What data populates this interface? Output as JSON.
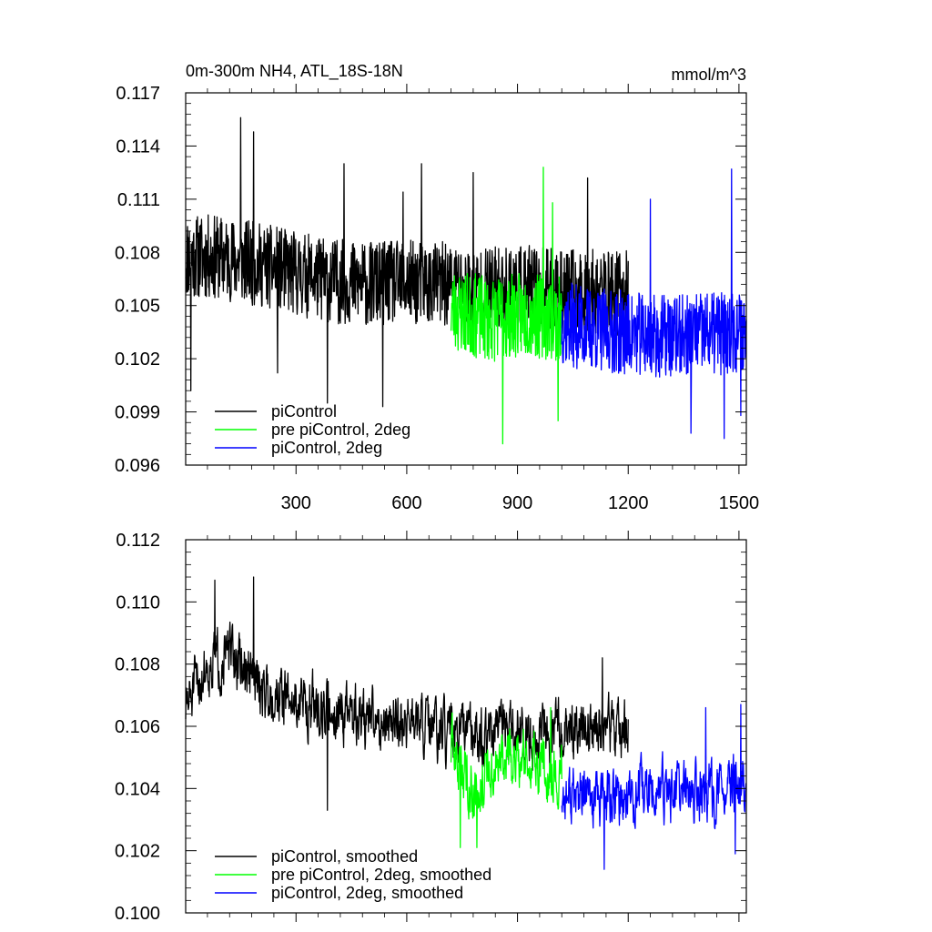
{
  "chart_data": [
    {
      "type": "line",
      "title": "0m-300m NH4, ATL_18S-18N",
      "units": "mmol/m^3",
      "xlabel": "",
      "ylabel": "",
      "xlim": [
        1,
        1520
      ],
      "ylim": [
        0.096,
        0.117
      ],
      "xticks": [
        300,
        600,
        900,
        1200,
        1500
      ],
      "xtick_labels": [
        "300",
        "600",
        "900",
        "1200",
        "1500"
      ],
      "yticks": [
        0.096,
        0.099,
        0.102,
        0.105,
        0.108,
        0.111,
        0.114,
        0.117
      ],
      "ytick_labels": [
        "0.096",
        "0.099",
        "0.102",
        "0.105",
        "0.108",
        "0.111",
        "0.114",
        "0.117"
      ],
      "legend_position": "bottom-left",
      "series": [
        {
          "name": "piControl",
          "color": "#000000",
          "x_start": 1,
          "x_end": 1200,
          "anchors": [
            [
              1,
              0.1078
            ],
            [
              100,
              0.1077
            ],
            [
              200,
              0.1073
            ],
            [
              300,
              0.1068
            ],
            [
              400,
              0.1064
            ],
            [
              500,
              0.1062
            ],
            [
              600,
              0.1063
            ],
            [
              700,
              0.1062
            ],
            [
              800,
              0.1059
            ],
            [
              900,
              0.1061
            ],
            [
              1000,
              0.1058
            ],
            [
              1100,
              0.1058
            ],
            [
              1200,
              0.1057
            ]
          ],
          "noise": 0.0024,
          "seed": 11,
          "peaks": [
            [
              15,
              0.1002
            ],
            [
              150,
              0.1156
            ],
            [
              185,
              0.1148
            ],
            [
              250,
              0.1012
            ],
            [
              340,
              0.1058
            ],
            [
              385,
              0.0995
            ],
            [
              430,
              0.113
            ],
            [
              535,
              0.0993
            ],
            [
              590,
              0.1114
            ],
            [
              640,
              0.113
            ],
            [
              780,
              0.1125
            ],
            [
              1090,
              0.1122
            ]
          ]
        },
        {
          "name": "pre piControl, 2deg",
          "color": "#00ff00",
          "x_start": 720,
          "x_end": 1020,
          "anchors": [
            [
              720,
              0.1048
            ],
            [
              820,
              0.1042
            ],
            [
              920,
              0.1045
            ],
            [
              1020,
              0.1042
            ]
          ],
          "noise": 0.0024,
          "seed": 23,
          "peaks": [
            [
              860,
              0.0972
            ],
            [
              970,
              0.1128
            ],
            [
              995,
              0.1108
            ],
            [
              1010,
              0.0985
            ]
          ]
        },
        {
          "name": "piControl, 2deg",
          "color": "#0000ff",
          "x_start": 1020,
          "x_end": 1520,
          "anchors": [
            [
              1020,
              0.104
            ],
            [
              1120,
              0.1036
            ],
            [
              1220,
              0.1034
            ],
            [
              1320,
              0.1032
            ],
            [
              1420,
              0.1034
            ],
            [
              1520,
              0.1036
            ]
          ],
          "noise": 0.0024,
          "seed": 37,
          "peaks": [
            [
              1260,
              0.111
            ],
            [
              1370,
              0.0978
            ],
            [
              1460,
              0.0975
            ],
            [
              1480,
              0.1127
            ],
            [
              1505,
              0.0988
            ]
          ]
        }
      ]
    },
    {
      "type": "line",
      "title": "",
      "xlabel": "",
      "ylabel": "",
      "xlim": [
        1,
        1520
      ],
      "ylim": [
        0.1,
        0.112
      ],
      "xticks": [
        300,
        600,
        900,
        1200,
        1500
      ],
      "yticks": [
        0.1,
        0.102,
        0.104,
        0.106,
        0.108,
        0.11,
        0.112
      ],
      "ytick_labels": [
        "0.100",
        "0.102",
        "0.104",
        "0.106",
        "0.108",
        "0.110",
        "0.112"
      ],
      "legend_position": "bottom-left",
      "series": [
        {
          "name": "piControl, smoothed",
          "color": "#000000",
          "x_start": 1,
          "x_end": 1200,
          "anchors": [
            [
              1,
              0.1066
            ],
            [
              60,
              0.108
            ],
            [
              120,
              0.1083
            ],
            [
              200,
              0.1073
            ],
            [
              300,
              0.1068
            ],
            [
              400,
              0.1065
            ],
            [
              500,
              0.1062
            ],
            [
              600,
              0.1062
            ],
            [
              700,
              0.1057
            ],
            [
              800,
              0.1057
            ],
            [
              900,
              0.1058
            ],
            [
              1000,
              0.1058
            ],
            [
              1100,
              0.106
            ],
            [
              1200,
              0.1059
            ]
          ],
          "noise": 0.001,
          "seed": 51,
          "peaks": [
            [
              80,
              0.1107
            ],
            [
              185,
              0.1108
            ],
            [
              385,
              0.1033
            ],
            [
              1130,
              0.1082
            ]
          ]
        },
        {
          "name": "pre piControl, 2deg, smoothed",
          "color": "#00ff00",
          "x_start": 720,
          "x_end": 1020,
          "anchors": [
            [
              720,
              0.1052
            ],
            [
              780,
              0.104
            ],
            [
              850,
              0.1048
            ],
            [
              920,
              0.105
            ],
            [
              1020,
              0.1044
            ]
          ],
          "noise": 0.001,
          "seed": 63,
          "peaks": [
            [
              745,
              0.1021
            ],
            [
              790,
              0.1021
            ],
            [
              990,
              0.1066
            ]
          ]
        },
        {
          "name": "piControl, 2deg, smoothed",
          "color": "#0000ff",
          "x_start": 1020,
          "x_end": 1520,
          "anchors": [
            [
              1020,
              0.1038
            ],
            [
              1120,
              0.1036
            ],
            [
              1220,
              0.1038
            ],
            [
              1320,
              0.1039
            ],
            [
              1420,
              0.1038
            ],
            [
              1520,
              0.104
            ]
          ],
          "noise": 0.001,
          "seed": 77,
          "peaks": [
            [
              1135,
              0.1014
            ],
            [
              1410,
              0.1066
            ],
            [
              1490,
              0.1019
            ],
            [
              1505,
              0.1067
            ]
          ]
        }
      ]
    }
  ]
}
